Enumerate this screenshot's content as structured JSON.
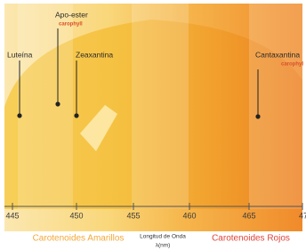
{
  "pigments": [
    {
      "label": "Luteína"
    },
    {
      "label": "Apo-ester",
      "brand": "carophyll"
    },
    {
      "label": "Zeaxantina"
    },
    {
      "label": "Cantaxantina",
      "brand": "carophyl"
    }
  ],
  "axis": {
    "ticks": [
      "445",
      "450",
      "455",
      "460",
      "465",
      "47"
    ],
    "title": "Longitud de Onda",
    "unit": "λ(nm)"
  },
  "groups": {
    "yellow": "Carotenoides Amarillos",
    "red": "Carotenoides Rojos"
  }
}
